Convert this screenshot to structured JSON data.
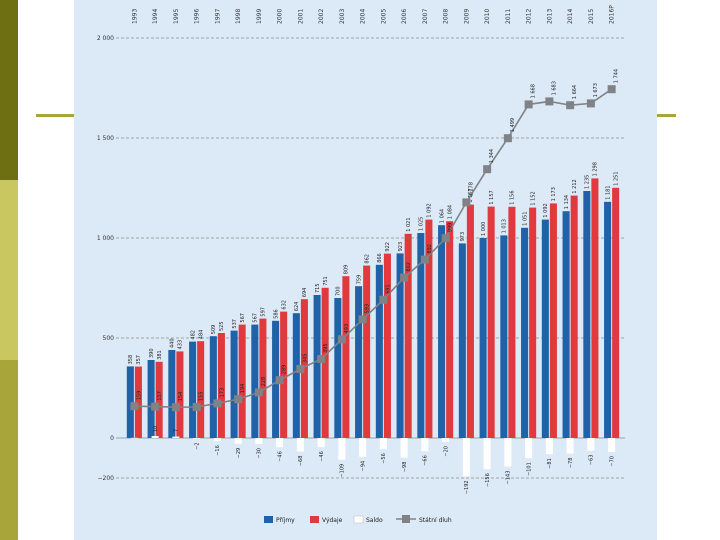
{
  "chart_data": {
    "type": "bar",
    "title": "",
    "xlabel": "",
    "ylabel": "",
    "ylim": [
      -200,
      2000
    ],
    "yticks": [
      -200,
      0,
      500,
      1000,
      1500,
      2000
    ],
    "ytick_labels": [
      "−200",
      "0",
      "500",
      "1 000",
      "1 500",
      "2 000"
    ],
    "categories": [
      "1993",
      "1994",
      "1995",
      "1996",
      "1997",
      "1998",
      "1999",
      "2000",
      "2001",
      "2002",
      "2003",
      "2004",
      "2005",
      "2006",
      "2007",
      "2008",
      "2009",
      "2010",
      "2011",
      "2012",
      "2013",
      "2014",
      "2015",
      "2016P"
    ],
    "series": [
      {
        "name": "Příjmy",
        "color": "#1f62a8",
        "values": [
          358,
          390,
          440,
          482,
          509,
          537,
          567,
          586,
          624,
          715,
          700,
          759,
          866,
          923,
          1025,
          1064,
          973,
          1000,
          1013,
          1051,
          1092,
          1134,
          1235,
          1181
        ],
        "labels": [
          "358",
          "390",
          "440",
          "482",
          "509",
          "537",
          "567",
          "586",
          "624",
          "715",
          "700",
          "759",
          "866",
          "923",
          "1 025",
          "1 064",
          "973",
          "1 000",
          "1 013",
          "1 051",
          "1 092",
          "1 134",
          "1 235",
          "1 181"
        ]
      },
      {
        "name": "Výdaje",
        "color": "#e03a3e",
        "values": [
          357,
          381,
          433,
          484,
          525,
          567,
          597,
          632,
          694,
          751,
          809,
          862,
          922,
          1021,
          1092,
          1084,
          1167,
          1157,
          1156,
          1152,
          1173,
          1212,
          1298,
          1251
        ],
        "labels": [
          "357",
          "381",
          "433",
          "484",
          "525",
          "567",
          "597",
          "632",
          "694",
          "751",
          "809",
          "862",
          "922",
          "1 021",
          "1 092",
          "1 084",
          "1 167",
          "1 157",
          "1 156",
          "1 152",
          "1 173",
          "1 212",
          "1 298",
          "1 251"
        ]
      },
      {
        "name": "Saldo",
        "color": "#ffffff",
        "values": [
          1,
          10,
          7,
          -2,
          -16,
          -29,
          -30,
          -46,
          -68,
          -46,
          -109,
          -94,
          -56,
          -98,
          -66,
          -20,
          -192,
          -156,
          -143,
          -101,
          -81,
          -78,
          -63,
          -70
        ],
        "labels": [
          "",
          "10",
          "7",
          "−2",
          "−16",
          "−29",
          "−30",
          "−46",
          "−68",
          "−46",
          "−109",
          "−94",
          "−56",
          "−98",
          "−66",
          "−20",
          "−192",
          "−156",
          "−143",
          "−101",
          "−81",
          "−78",
          "−63",
          "−70"
        ]
      },
      {
        "name": "Státní dluh",
        "color": "#808285",
        "type": "line",
        "values": [
          159,
          157,
          154,
          155,
          173,
          194,
          228,
          289,
          345,
          395,
          493,
          593,
          691,
          802,
          892,
          999,
          1178,
          1344,
          1499,
          1668,
          1683,
          1664,
          1673,
          1744
        ],
        "labels": [
          "159",
          "157",
          "154",
          "155",
          "173",
          "194",
          "228",
          "289",
          "345",
          "395",
          "493",
          "593",
          "691",
          "802",
          "892",
          "999",
          "1 178",
          "1 344",
          "1 499",
          "1 668",
          "1 683",
          "1 664",
          "1 673",
          "1 744"
        ]
      }
    ],
    "legend": {
      "position": "bottom"
    },
    "grid": true
  },
  "colors": {
    "panel_background": "#dce9f7",
    "bar_prijmy": "#1f62a8",
    "bar_vydaje": "#e03a3e",
    "bar_saldo": "#ffffff",
    "line_dluh": "#808285",
    "deco_line": "#a8a63a",
    "left_bar_top": "#6e6f12",
    "left_bar_mid": "#c8c760",
    "left_bar_bottom": "#a8a63a"
  }
}
